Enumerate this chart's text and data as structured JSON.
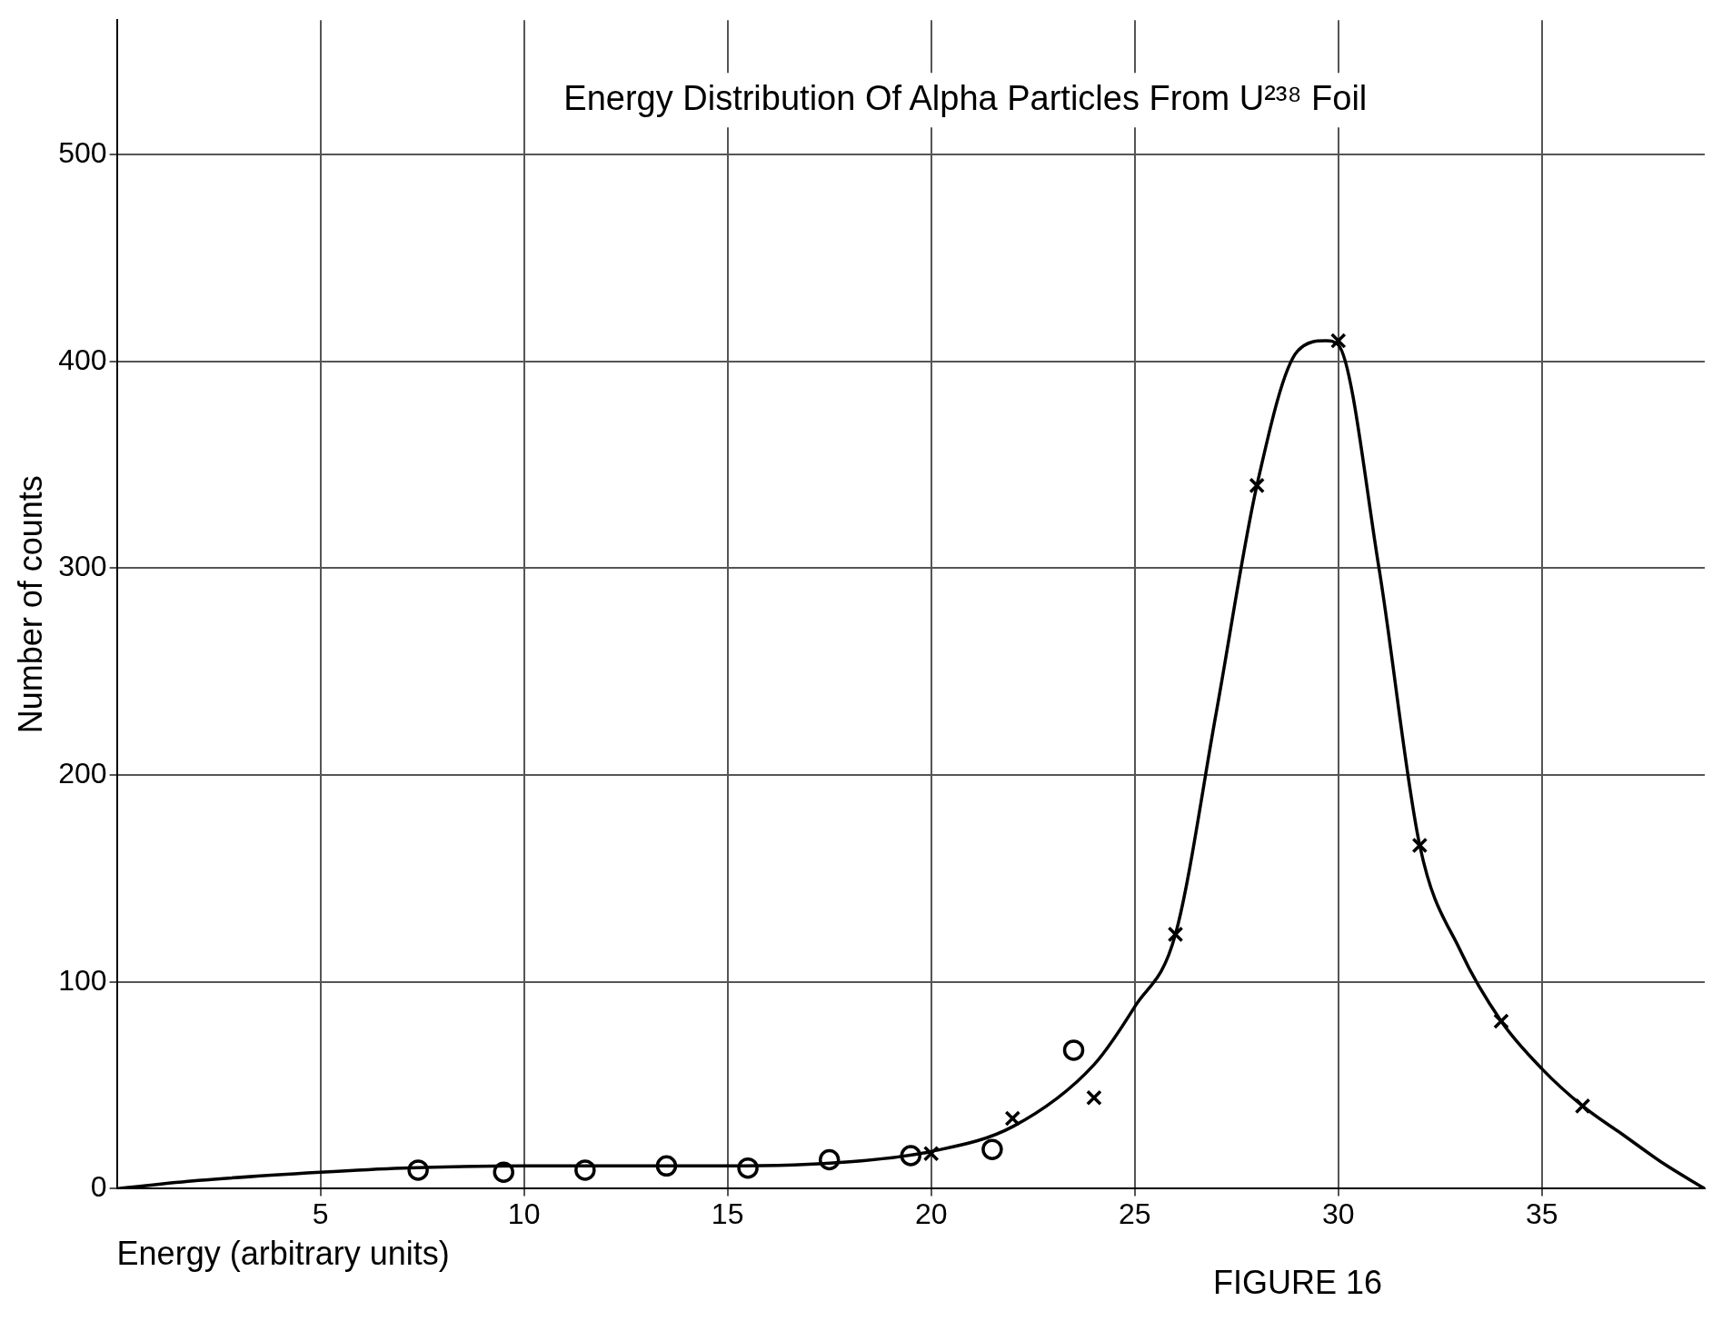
{
  "chart_data": {
    "type": "scatter",
    "title": "Energy Distribution Of Alpha Particles From U²³⁸ Foil",
    "xlabel": "Energy (arbitrary units)",
    "ylabel": "Number of counts",
    "annotations": [
      "FIGURE 16"
    ],
    "xlim": [
      0,
      39
    ],
    "xticks": [
      5,
      10,
      15,
      20,
      25,
      30,
      35
    ],
    "ylim": [
      0,
      565
    ],
    "yticks": [
      0,
      100,
      200,
      300,
      400,
      500
    ],
    "grid": true,
    "legend": false,
    "series": [
      {
        "type": "scatter",
        "marker": "circle",
        "color": "#000000",
        "x": [
          7.4,
          9.5,
          11.5,
          13.5,
          15.5,
          17.5,
          19.5,
          21.5,
          23.5
        ],
        "values": [
          9,
          8,
          9,
          11,
          10,
          14,
          16,
          19,
          67
        ]
      },
      {
        "type": "scatter",
        "marker": "cross",
        "color": "#000000",
        "x": [
          20,
          22,
          24,
          26,
          28,
          30,
          32,
          34,
          36
        ],
        "values": [
          17,
          34,
          44,
          123,
          340,
          410,
          166,
          81,
          40
        ]
      },
      {
        "type": "line",
        "marker": "none",
        "line_style": "solid",
        "color": "#000000",
        "x": [
          0,
          2,
          5,
          7,
          10,
          15,
          18,
          20,
          22,
          24,
          25,
          26,
          27,
          28,
          29,
          29.7,
          30,
          31,
          32,
          33,
          34,
          35,
          36,
          37,
          38,
          39
        ],
        "values": [
          0,
          4,
          8,
          10,
          11,
          11,
          13,
          18,
          30,
          60,
          88,
          123,
          230,
          340,
          405,
          410,
          408,
          300,
          166,
          115,
          81,
          58,
          40,
          26,
          12,
          0
        ]
      }
    ]
  }
}
